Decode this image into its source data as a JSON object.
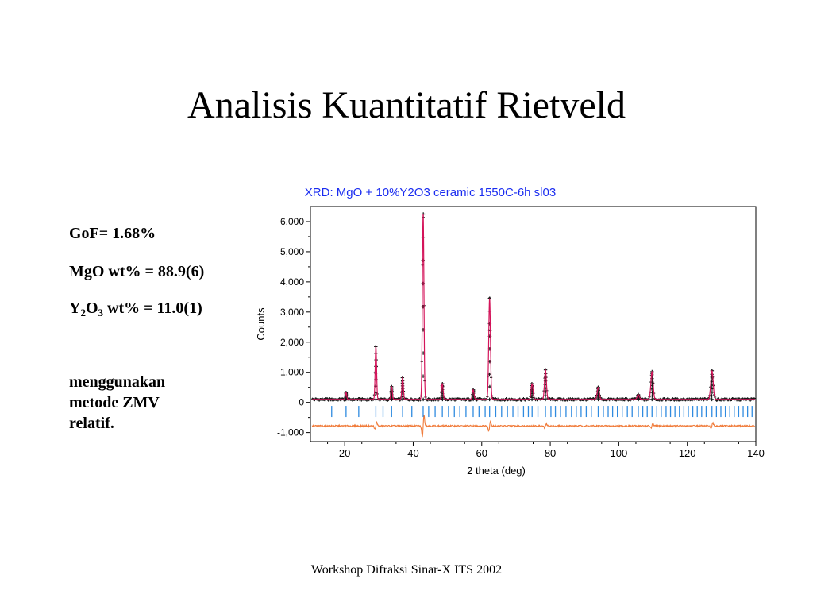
{
  "slide": {
    "title": "Analisis Kuantitatif Rietveld",
    "footer": "Workshop Difraksi Sinar-X ITS 2002"
  },
  "stats": {
    "gof": "GoF= 1.68%",
    "mgo": "MgO wt% = 88.9(6)",
    "y2o3_y": "Y",
    "y2o3_sub1": "2",
    "y2o3_o": "O",
    "y2o3_sub2": "3",
    "y2o3_rest": " wt% = 11.0(1)"
  },
  "method_note": {
    "lines": [
      "menggunakan",
      "metode ZMV",
      "relatif."
    ]
  },
  "colors": {
    "observed": "#1a1a1a",
    "calculated": "#d4145a",
    "tick_marks": "#2f8be0",
    "difference": "#f07b3a",
    "title_blue": "#1a2cf0"
  },
  "chart_data": {
    "type": "line",
    "title": "XRD: MgO + 10%Y2O3 ceramic 1550C-6h sl03",
    "xlabel": "2 theta (deg)",
    "ylabel": "Counts",
    "xlim": [
      10,
      140
    ],
    "ylim": [
      -1300,
      6500
    ],
    "xticks": [
      20,
      40,
      60,
      80,
      100,
      120,
      140
    ],
    "yticks": [
      -1000,
      0,
      1000,
      2000,
      3000,
      4000,
      5000,
      6000
    ],
    "ytick_labels": [
      "-1,000",
      "0",
      "1,000",
      "2,000",
      "3,000",
      "4,000",
      "5,000",
      "6,000"
    ],
    "background_level": 100,
    "peaks": [
      {
        "x": 20.4,
        "y": 330
      },
      {
        "x": 29.1,
        "y": 1850
      },
      {
        "x": 33.7,
        "y": 520
      },
      {
        "x": 36.9,
        "y": 820
      },
      {
        "x": 42.9,
        "y": 6250
      },
      {
        "x": 48.5,
        "y": 620
      },
      {
        "x": 57.5,
        "y": 420
      },
      {
        "x": 62.3,
        "y": 3450
      },
      {
        "x": 74.7,
        "y": 620
      },
      {
        "x": 78.6,
        "y": 1080
      },
      {
        "x": 94.0,
        "y": 500
      },
      {
        "x": 105.7,
        "y": 260
      },
      {
        "x": 109.7,
        "y": 1020
      },
      {
        "x": 127.2,
        "y": 1050
      }
    ],
    "reflection_ticks_y": -300,
    "reflection_ticks_x": [
      16.2,
      20.4,
      24.1,
      29.1,
      31.2,
      33.7,
      36.9,
      39.6,
      42.9,
      44.5,
      46.4,
      48.5,
      50.3,
      52.0,
      53.6,
      55.4,
      57.5,
      59.2,
      61.0,
      62.3,
      64.1,
      65.8,
      67.5,
      69.1,
      70.6,
      72.2,
      73.6,
      74.7,
      76.4,
      78.6,
      80.2,
      81.5,
      83.0,
      84.6,
      86.2,
      87.6,
      89.0,
      90.5,
      92.0,
      94.0,
      95.5,
      96.9,
      98.2,
      99.6,
      101.0,
      102.5,
      103.9,
      105.7,
      107.0,
      108.3,
      109.7,
      111.1,
      112.4,
      113.8,
      115.1,
      116.4,
      117.7,
      119.0,
      120.3,
      121.6,
      122.9,
      124.2,
      125.5,
      127.2,
      128.5,
      129.8,
      131.1,
      132.4,
      133.7,
      135.0,
      136.3,
      137.6,
      138.9
    ],
    "difference_offset": -780,
    "difference_features": [
      {
        "x": 29.1,
        "amplitude": 150
      },
      {
        "x": 42.9,
        "amplitude": 450
      },
      {
        "x": 62.3,
        "amplitude": 200
      },
      {
        "x": 78.6,
        "amplitude": 90
      },
      {
        "x": 109.7,
        "amplitude": 90
      },
      {
        "x": 127.2,
        "amplitude": 120
      }
    ]
  }
}
